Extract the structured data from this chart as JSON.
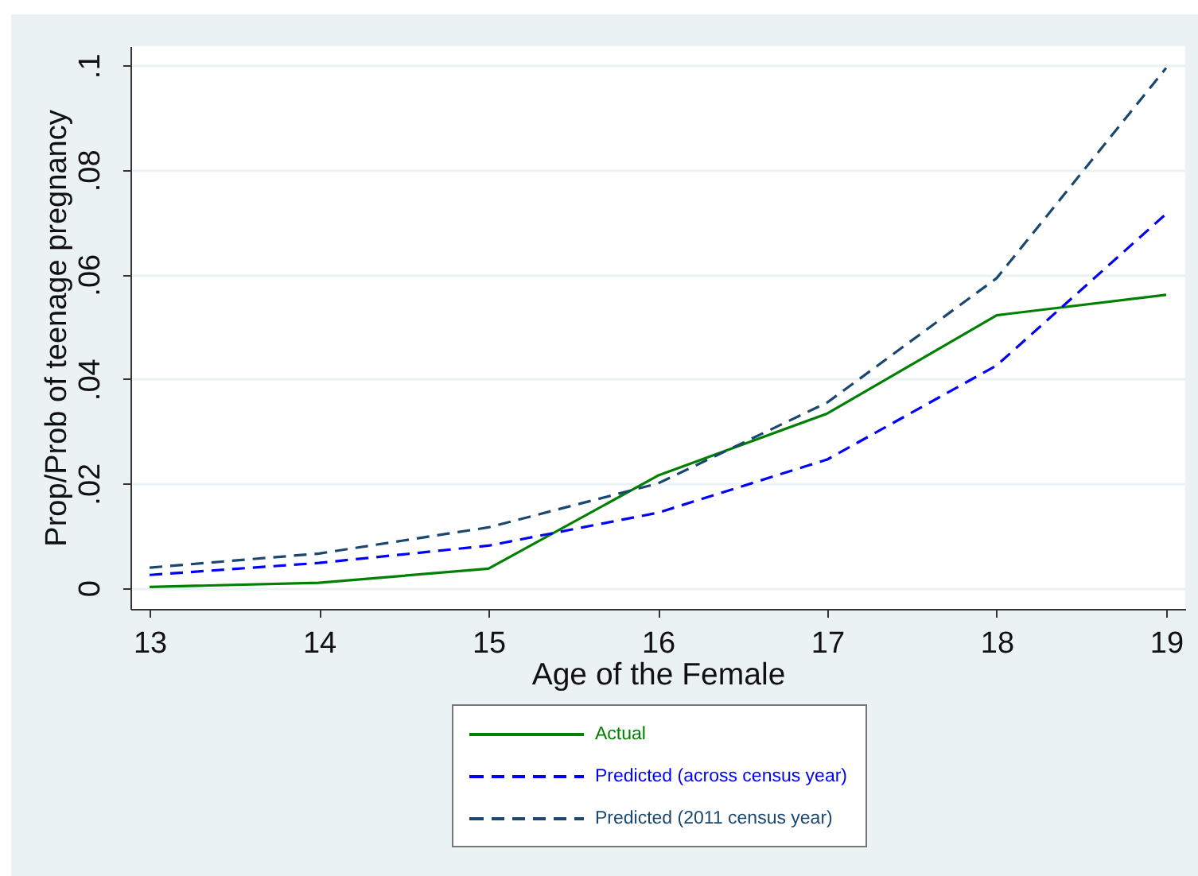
{
  "chart_data": {
    "type": "line",
    "xlabel": "Age of the Female",
    "ylabel": "Prop/Prob of teenage pregnancy",
    "x": [
      13,
      14,
      15,
      16,
      17,
      18,
      19
    ],
    "xlim": [
      12.887,
      19.113
    ],
    "xticks": [
      13,
      14,
      15,
      16,
      17,
      18,
      19
    ],
    "ylim": [
      -0.004,
      0.1037
    ],
    "yticks": [
      0,
      {
        "value": 0.02,
        "label": ".02"
      },
      {
        "value": 0.04,
        "label": ".04"
      },
      {
        "value": 0.06,
        "label": ".06"
      },
      {
        "value": 0.08,
        "label": ".08"
      },
      {
        "value": 0.1,
        "label": ".1"
      }
    ],
    "grid": "y",
    "legend": "bottom",
    "series": [
      {
        "name": "Actual",
        "color": "#008000",
        "line_style": "solid",
        "values": [
          0.0002,
          0.001,
          0.0037,
          0.0215,
          0.0334,
          0.0522,
          0.0561
        ]
      },
      {
        "name": "Predicted (across census year)",
        "color": "#0000ff",
        "line_style": "dashed",
        "values": [
          0.0025,
          0.0048,
          0.0081,
          0.0144,
          0.0246,
          0.0426,
          0.0716
        ]
      },
      {
        "name": "Predicted (2011 census year)",
        "color": "#1a476f",
        "line_style": "dashed",
        "values": [
          0.0039,
          0.0066,
          0.0116,
          0.02,
          0.0355,
          0.0593,
          0.0995
        ]
      }
    ]
  }
}
